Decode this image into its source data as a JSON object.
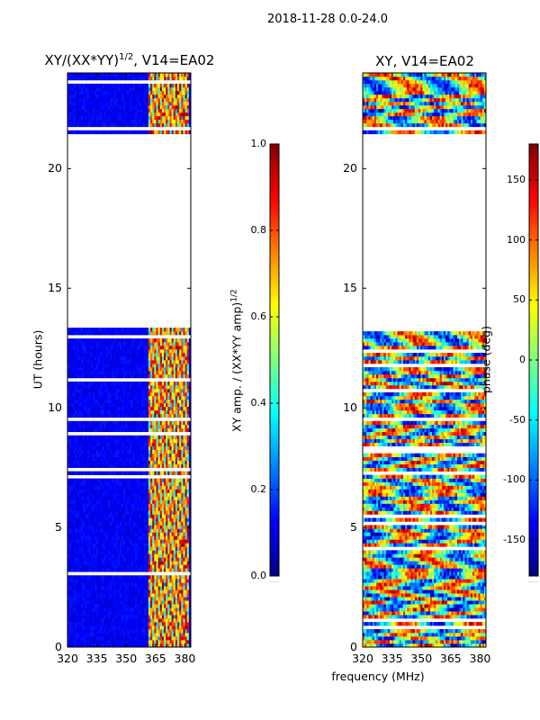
{
  "figure": {
    "suptitle": "2018-11-28 0.0-24.0",
    "xlabel": "frequency (MHz)",
    "left_cbar_label": "XY amp. / (XX*YY amp)",
    "left_cbar_label_sup": "1/2",
    "right_cbar_label": "phase (deg)",
    "left_cbar_bottom_note": "......",
    "right_cbar_bottom_note": "......"
  },
  "chart_data": [
    {
      "type": "heatmap",
      "title_main": "XY/(XX*YY)",
      "title_sup": "1/2",
      "title_rest": ", V14=EA02",
      "xlabel": "",
      "ylabel": "UT (hours)",
      "xlim": [
        320,
        383
      ],
      "ylim": [
        0,
        24
      ],
      "xticks": [
        320,
        335,
        350,
        365,
        380
      ],
      "yticks": [
        0,
        5,
        10,
        15,
        20
      ],
      "colormap": "jet",
      "colorbar": {
        "label": "XY amp. / (XX*YY amp)^1/2",
        "range": [
          0.0,
          1.0
        ],
        "ticks": [
          "0.0",
          "0.2",
          "0.4",
          "0.6",
          "0.8",
          "1.0"
        ],
        "tick_values": [
          0.0,
          0.2,
          0.4,
          0.6,
          0.8,
          1.0
        ]
      },
      "data_blocks_hours": [
        [
          0.0,
          13.3
        ],
        [
          21.5,
          24.0
        ]
      ],
      "empty_gap_hours": [
        13.3,
        21.5
      ],
      "active_band_mhz": [
        361,
        382
      ],
      "background_level": 0.08
    },
    {
      "type": "heatmap",
      "title": "XY, V14=EA02",
      "xlabel": "frequency (MHz)",
      "ylabel": "",
      "xlim": [
        320,
        383
      ],
      "ylim": [
        0,
        24
      ],
      "xticks": [
        320,
        335,
        350,
        365,
        380
      ],
      "yticks": [
        0,
        5,
        10,
        15,
        20
      ],
      "colormap": "jet",
      "colorbar": {
        "label": "phase (deg)",
        "range": [
          -180,
          180
        ],
        "ticks": [
          "-150",
          "-100",
          "-50",
          "0",
          "50",
          "100",
          "150"
        ],
        "tick_values": [
          -150,
          -100,
          -50,
          0,
          50,
          100,
          150
        ]
      },
      "data_blocks_hours": [
        [
          0.0,
          13.3
        ],
        [
          21.5,
          24.0
        ]
      ],
      "empty_gap_hours": [
        13.3,
        21.5
      ]
    }
  ],
  "colors": {
    "jet": [
      "#00007f",
      "#0000ff",
      "#007fff",
      "#00ffff",
      "#7fff7f",
      "#ffff00",
      "#ff7f00",
      "#ff0000",
      "#7f0000"
    ]
  }
}
